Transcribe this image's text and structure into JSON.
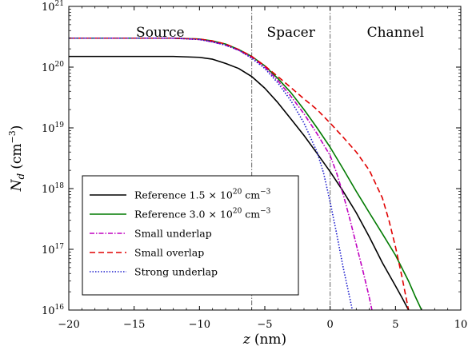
{
  "chart_data": {
    "type": "line",
    "xlabel": {
      "symbol": "z",
      "unit": "(nm)"
    },
    "ylabel": {
      "symbol": "N",
      "subscript": "d",
      "unit": "(cm",
      "unit_exp": "−3",
      "unit_close": ")"
    },
    "xlim": [
      -20,
      10
    ],
    "ylim": [
      1e+16,
      1e+21
    ],
    "yscale": "log",
    "grid": false,
    "legend_position": "lower-left",
    "x_ticks": [
      {
        "value": -20,
        "label": "−20"
      },
      {
        "value": -15,
        "label": "−15"
      },
      {
        "value": -10,
        "label": "−10"
      },
      {
        "value": -5,
        "label": "−5"
      },
      {
        "value": 0,
        "label": "0"
      },
      {
        "value": 5,
        "label": "5"
      },
      {
        "value": 10,
        "label": "10"
      }
    ],
    "y_ticks": [
      {
        "value": 1e+16,
        "base": "10",
        "exp": "16"
      },
      {
        "value": 1e+17,
        "base": "10",
        "exp": "17"
      },
      {
        "value": 1e+18,
        "base": "10",
        "exp": "18"
      },
      {
        "value": 1e+19,
        "base": "10",
        "exp": "19"
      },
      {
        "value": 1e+20,
        "base": "10",
        "exp": "20"
      },
      {
        "value": 1e+21,
        "base": "10",
        "exp": "21"
      }
    ],
    "region_boundaries": [
      -6,
      0
    ],
    "regions": [
      {
        "label": "Source",
        "x": -13
      },
      {
        "label": "Spacer",
        "x": -3
      },
      {
        "label": "Channel",
        "x": 5
      }
    ],
    "series": [
      {
        "name": "Reference 1.5 × 10²⁰ cm⁻³",
        "legend": {
          "pre": "Reference 1.5 × 10",
          "exp": "20",
          "post": " cm",
          "post_exp": "−3"
        },
        "color": "#000000",
        "dash": "",
        "x": [
          -20,
          -12,
          -10,
          -9,
          -8,
          -7,
          -6,
          -5,
          -4,
          -3,
          -2,
          -1,
          0,
          1,
          2,
          3,
          4,
          5,
          5.5,
          6
        ],
        "y": [
          1.5e+20,
          1.5e+20,
          1.45e+20,
          1.35e+20,
          1.15e+20,
          9.5e+19,
          7e+19,
          4.5e+19,
          2.6e+19,
          1.4e+19,
          7.5e+18,
          3.8e+18,
          1.9e+18,
          9e+17,
          4e+17,
          1.6e+17,
          6e+16,
          2.5e+16,
          1.6e+16,
          1e+16
        ]
      },
      {
        "name": "Reference 3.0 × 10²⁰ cm⁻³",
        "legend": {
          "pre": "Reference 3.0 × 10",
          "exp": "20",
          "post": " cm",
          "post_exp": "−3"
        },
        "color": "#007a00",
        "dash": "",
        "x": [
          -20,
          -12,
          -10,
          -9,
          -8,
          -7,
          -6,
          -5,
          -4,
          -3,
          -2,
          -1,
          0,
          1,
          2,
          3,
          4,
          5,
          6,
          6.5,
          7
        ],
        "y": [
          3e+20,
          3e+20,
          2.9e+20,
          2.7e+20,
          2.4e+20,
          1.95e+20,
          1.5e+20,
          1.05e+20,
          6.5e+19,
          3.8e+19,
          2e+19,
          1e+19,
          4.8e+18,
          2.1e+18,
          9e+17,
          4e+17,
          1.8e+17,
          8e+16,
          3e+16,
          1.7e+16,
          1e+16
        ]
      },
      {
        "name": "Small underlap",
        "legend": {
          "pre": "Small underlap",
          "exp": "",
          "post": "",
          "post_exp": ""
        },
        "color": "#c000c0",
        "dash": "6,2,1.5,2",
        "x": [
          -20,
          -12,
          -10,
          -9,
          -8,
          -7,
          -6,
          -5,
          -4,
          -3,
          -2,
          -1,
          0,
          0.5,
          1,
          1.5,
          2,
          2.5,
          3,
          3.2
        ],
        "y": [
          3e+20,
          3e+20,
          2.85e+20,
          2.6e+20,
          2.3e+20,
          1.9e+20,
          1.45e+20,
          1e+20,
          6e+19,
          3.3e+19,
          1.7e+19,
          8e+18,
          3.5e+18,
          1.8e+18,
          8e+17,
          3.2e+17,
          1.2e+17,
          4.5e+16,
          1.6e+16,
          1e+16
        ]
      },
      {
        "name": "Small overlap",
        "legend": {
          "pre": "Small overlap",
          "exp": "",
          "post": "",
          "post_exp": ""
        },
        "color": "#e00000",
        "dash": "7,4",
        "x": [
          -20,
          -12,
          -10,
          -9,
          -8,
          -7,
          -6,
          -5,
          -4,
          -3,
          -2,
          -1,
          0,
          1,
          2,
          3,
          4,
          4.5,
          5,
          5.5,
          6
        ],
        "y": [
          3e+20,
          3e+20,
          2.9e+20,
          2.7e+20,
          2.4e+20,
          1.95e+20,
          1.5e+20,
          1.05e+20,
          7e+19,
          4.6e+19,
          3e+19,
          2e+19,
          1.2e+19,
          7e+18,
          4e+18,
          2e+18,
          7e+17,
          3e+17,
          1.1e+17,
          3.5e+16,
          1e+16
        ]
      },
      {
        "name": "Strong underlap",
        "legend": {
          "pre": "Strong underlap",
          "exp": "",
          "post": "",
          "post_exp": ""
        },
        "color": "#1a1acc",
        "dash": "1.5,2",
        "x": [
          -20,
          -12,
          -10,
          -9,
          -8,
          -7,
          -6,
          -5,
          -4,
          -3,
          -2,
          -1,
          -0.5,
          0,
          0.5,
          1,
          1.5,
          1.7
        ],
        "y": [
          3e+20,
          3e+20,
          2.85e+20,
          2.6e+20,
          2.3e+20,
          1.9e+20,
          1.4e+20,
          9.5e+19,
          5.5e+19,
          2.8e+19,
          1.2e+19,
          4e+18,
          1.8e+18,
          6e+17,
          1.8e+17,
          5e+16,
          1.6e+16,
          1e+16
        ]
      }
    ]
  }
}
